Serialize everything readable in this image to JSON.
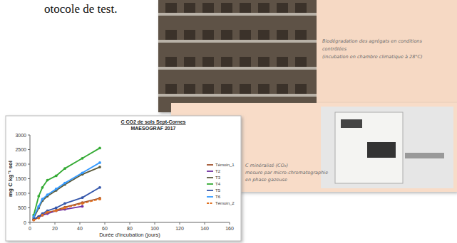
{
  "header": {
    "text": "otocole de test."
  },
  "panels": [
    {
      "caption": [
        "Biodégradation des agrégats en conditions",
        "contrôlées",
        "(incubation en chambre climatique à 28°C)"
      ]
    },
    {
      "caption": [
        "C minéralisé (CO₂)",
        "mesure par micro-chromatographie",
        "en phase gazeuse"
      ]
    }
  ],
  "chart_data": {
    "type": "line",
    "title": "C CO2 de sols Sept-Cornes",
    "subtitle": "MAESOGRAF 2017",
    "x_label": "Durée d'incubation (jours)",
    "y_label": "mg C kg⁻¹ sol",
    "x": [
      3,
      7,
      10,
      14,
      21,
      28,
      42,
      56
    ],
    "xlim": [
      0,
      160
    ],
    "xticks": [
      0,
      20,
      40,
      60,
      80,
      100,
      120,
      140,
      160
    ],
    "ylim": [
      0,
      3000
    ],
    "yticks": [
      0,
      500,
      1000,
      1500,
      2000,
      2500,
      3000
    ],
    "grid": false,
    "legend": "right",
    "marker": "circle",
    "series": [
      {
        "name": "Témoin_1",
        "color": "#a0522d",
        "line_style": "solid",
        "values": [
          90,
          170,
          260,
          330,
          420,
          520,
          680,
          830
        ]
      },
      {
        "name": "T2",
        "color": "#7030a0",
        "line_style": "solid",
        "values": [
          100,
          200,
          250,
          300,
          400,
          450,
          550,
          null
        ]
      },
      {
        "name": "T3",
        "color": "#5a5a3a",
        "line_style": "solid",
        "values": [
          150,
          500,
          750,
          900,
          1100,
          1300,
          1650,
          1900
        ]
      },
      {
        "name": "T4",
        "color": "#33aa33",
        "line_style": "solid",
        "values": [
          250,
          900,
          1200,
          1450,
          1600,
          1850,
          2200,
          2550
        ]
      },
      {
        "name": "T5",
        "color": "#3355aa",
        "line_style": "solid",
        "values": [
          100,
          200,
          300,
          400,
          500,
          650,
          850,
          1200
        ]
      },
      {
        "name": "T6",
        "color": "#3399ff",
        "line_style": "solid",
        "values": [
          200,
          550,
          800,
          950,
          1150,
          1350,
          1700,
          2050
        ]
      },
      {
        "name": "Témoin_2",
        "color": "#e07020",
        "line_style": "dashed",
        "values": [
          80,
          150,
          250,
          350,
          400,
          500,
          650,
          800
        ]
      }
    ]
  }
}
